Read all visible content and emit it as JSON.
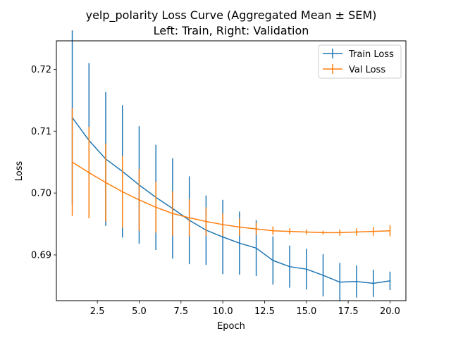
{
  "chart_data": {
    "type": "line",
    "title_line1": "yelp_polarity Loss Curve (Aggregated Mean ± SEM)",
    "title_line2": "Left: Train, Right: Validation",
    "xlabel": "Epoch",
    "ylabel": "Loss",
    "xlim": [
      0.05,
      20.95
    ],
    "ylim": [
      0.6826,
      0.7246
    ],
    "xticks": [
      2.5,
      5.0,
      7.5,
      10.0,
      12.5,
      15.0,
      17.5,
      20.0
    ],
    "xtick_labels": [
      "2.5",
      "5.0",
      "7.5",
      "10.0",
      "12.5",
      "15.0",
      "17.5",
      "20.0"
    ],
    "yticks": [
      0.69,
      0.7,
      0.71,
      0.72
    ],
    "ytick_labels": [
      "0.69",
      "0.70",
      "0.71",
      "0.72"
    ],
    "legend_position": "top-right",
    "x": [
      1,
      2,
      3,
      4,
      5,
      6,
      7,
      8,
      9,
      10,
      11,
      12,
      13,
      14,
      15,
      16,
      17,
      18,
      19,
      20
    ],
    "series": [
      {
        "name": "Train Loss",
        "color": "#1f77b4",
        "values": [
          0.7122,
          0.7085,
          0.7055,
          0.7035,
          0.7013,
          0.6993,
          0.6975,
          0.6956,
          0.694,
          0.6929,
          0.6919,
          0.6911,
          0.6891,
          0.6881,
          0.6877,
          0.6867,
          0.6856,
          0.6857,
          0.6854,
          0.6858
        ],
        "errors": [
          0.0141,
          0.0125,
          0.0108,
          0.0107,
          0.0095,
          0.0085,
          0.0081,
          0.0071,
          0.0056,
          0.006,
          0.0051,
          0.0045,
          0.0039,
          0.0034,
          0.0033,
          0.0034,
          0.0031,
          0.0026,
          0.0022,
          0.0015
        ]
      },
      {
        "name": "Val Loss",
        "color": "#ff7f0e",
        "values": [
          0.705,
          0.7033,
          0.7017,
          0.7002,
          0.6989,
          0.6977,
          0.6967,
          0.696,
          0.6954,
          0.6949,
          0.6945,
          0.6942,
          0.6939,
          0.6938,
          0.6937,
          0.6936,
          0.6936,
          0.6937,
          0.6938,
          0.6939
        ],
        "errors": [
          0.0087,
          0.0074,
          0.0063,
          0.0058,
          0.005,
          0.0041,
          0.0036,
          0.003,
          0.0023,
          0.0018,
          0.0014,
          0.001,
          0.0007,
          0.0005,
          0.0004,
          0.0003,
          0.0005,
          0.0006,
          0.0007,
          0.0009
        ]
      }
    ]
  }
}
